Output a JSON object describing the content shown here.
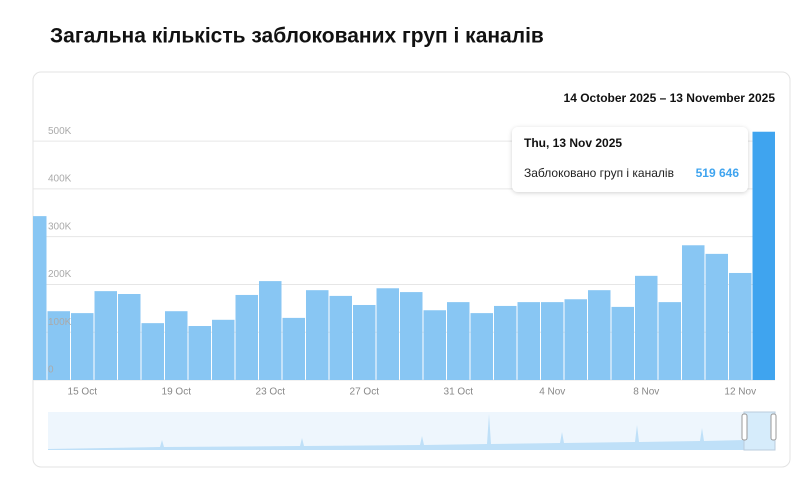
{
  "chart_data": {
    "type": "bar",
    "title": "Загальна кількість заблокованих груп і каналів",
    "date_range": "14 October 2025 – 13 November 2025",
    "categories": [
      null,
      null,
      "15 Oct",
      null,
      null,
      null,
      "19 Oct",
      null,
      null,
      null,
      "23 Oct",
      null,
      null,
      null,
      "27 Oct",
      null,
      null,
      null,
      "31 Oct",
      null,
      null,
      null,
      "4 Nov",
      null,
      null,
      null,
      "8 Nov",
      null,
      null,
      null,
      "12 Nov",
      null
    ],
    "values": [
      343000,
      144000,
      140000,
      186000,
      180000,
      119000,
      144000,
      113000,
      126000,
      178000,
      207000,
      130000,
      188000,
      176000,
      157000,
      192000,
      184000,
      146000,
      163000,
      140000,
      155000,
      163000,
      163000,
      169000,
      188000,
      153000,
      218000,
      163000,
      282000,
      264000,
      224000,
      519646
    ],
    "value_labels": [
      null,
      null,
      null,
      null,
      null,
      null,
      null,
      null,
      null,
      null,
      null,
      null,
      null,
      null,
      null,
      null,
      null,
      null,
      null,
      null,
      null,
      null,
      null,
      null,
      null,
      null,
      null,
      null,
      null,
      null,
      null,
      "519 646"
    ],
    "color": "#88c6f3",
    "selected_color": "#3fa4ef",
    "tooltip": {
      "date": "Thu, 13 Nov 2025",
      "series_name": "Заблоковано груп і каналів"
    },
    "ylim": [
      0,
      540000
    ],
    "yticks": [
      0,
      {
        "value": 100000,
        "label": "100K"
      },
      {
        "value": 200000,
        "label": "200K"
      },
      {
        "value": 300000,
        "label": "300K"
      },
      {
        "value": 400000,
        "label": "400K"
      },
      {
        "value": 500000,
        "label": "500K"
      }
    ],
    "grid": true
  }
}
